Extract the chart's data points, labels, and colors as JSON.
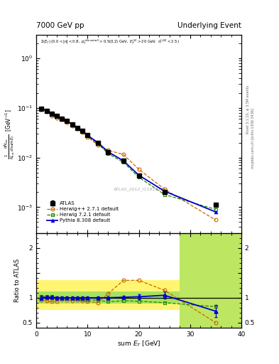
{
  "title_left": "7000 GeV pp",
  "title_right": "Underlying Event",
  "annotation": "ATLAS_2012_I1183818",
  "rivet_text": "Rivet 3.1.10, ≥ 3.5M events",
  "mcplots_text": "mcplots.cern.ch [arXiv:1306.3436]",
  "ylabel_ratio": "Ratio to ATLAS",
  "xlabel": "sum E_T [GeV]",
  "xlim": [
    0,
    40
  ],
  "ylim_main": [
    0.0003,
    3
  ],
  "ylim_ratio": [
    0.4,
    2.3
  ],
  "atlas_x": [
    1,
    2,
    3,
    4,
    5,
    6,
    7,
    8,
    9,
    10,
    12,
    14,
    17,
    20,
    25,
    35
  ],
  "atlas_y": [
    0.097,
    0.088,
    0.076,
    0.068,
    0.06,
    0.054,
    0.047,
    0.04,
    0.034,
    0.028,
    0.02,
    0.013,
    0.0085,
    0.0043,
    0.002,
    0.0011
  ],
  "atlas_yerr": [
    0.003,
    0.003,
    0.003,
    0.003,
    0.002,
    0.002,
    0.002,
    0.002,
    0.002,
    0.001,
    0.001,
    0.001,
    0.0005,
    0.0003,
    0.0001,
    0.0001
  ],
  "herwig2_x": [
    1,
    2,
    3,
    4,
    5,
    6,
    7,
    8,
    9,
    10,
    12,
    14,
    17,
    20,
    25,
    35
  ],
  "herwig2_y": [
    0.093,
    0.083,
    0.07,
    0.063,
    0.058,
    0.052,
    0.044,
    0.038,
    0.032,
    0.026,
    0.018,
    0.014,
    0.0115,
    0.0058,
    0.0023,
    0.00055
  ],
  "herwig2_ratio": [
    0.96,
    0.94,
    0.92,
    0.93,
    0.97,
    0.96,
    0.94,
    0.95,
    0.94,
    0.93,
    0.9,
    1.08,
    1.35,
    1.35,
    1.15,
    0.5
  ],
  "herwig7_x": [
    1,
    2,
    3,
    4,
    5,
    6,
    7,
    8,
    9,
    10,
    12,
    14,
    17,
    20,
    25,
    35
  ],
  "herwig7_y": [
    0.1,
    0.09,
    0.078,
    0.068,
    0.06,
    0.054,
    0.046,
    0.039,
    0.033,
    0.027,
    0.019,
    0.012,
    0.008,
    0.004,
    0.0018,
    0.0009
  ],
  "herwig7_ratio": [
    1.03,
    1.02,
    1.03,
    1.0,
    1.0,
    1.0,
    0.98,
    0.98,
    0.97,
    0.96,
    0.95,
    0.92,
    0.94,
    0.93,
    0.9,
    0.82
  ],
  "pythia_x": [
    1,
    2,
    3,
    4,
    5,
    6,
    7,
    8,
    9,
    10,
    12,
    14,
    17,
    20,
    25,
    35
  ],
  "pythia_y": [
    0.097,
    0.089,
    0.077,
    0.068,
    0.06,
    0.054,
    0.047,
    0.04,
    0.034,
    0.028,
    0.02,
    0.013,
    0.0086,
    0.0044,
    0.0021,
    0.0008
  ],
  "pythia_ratio": [
    1.0,
    1.01,
    1.01,
    1.0,
    1.0,
    1.0,
    1.0,
    1.0,
    1.0,
    1.0,
    1.0,
    1.0,
    1.01,
    1.02,
    1.05,
    0.73
  ],
  "pythia_ratio_err": [
    0.04,
    0.03,
    0.03,
    0.03,
    0.02,
    0.02,
    0.02,
    0.02,
    0.02,
    0.02,
    0.02,
    0.02,
    0.03,
    0.05,
    0.07,
    0.12
  ],
  "color_atlas": "#000000",
  "color_herwig2": "#cc6600",
  "color_herwig7": "#228800",
  "color_pythia": "#0000cc",
  "color_yellow": "#ffee00",
  "color_green": "#44cc44",
  "bg_color": "#ffffff"
}
